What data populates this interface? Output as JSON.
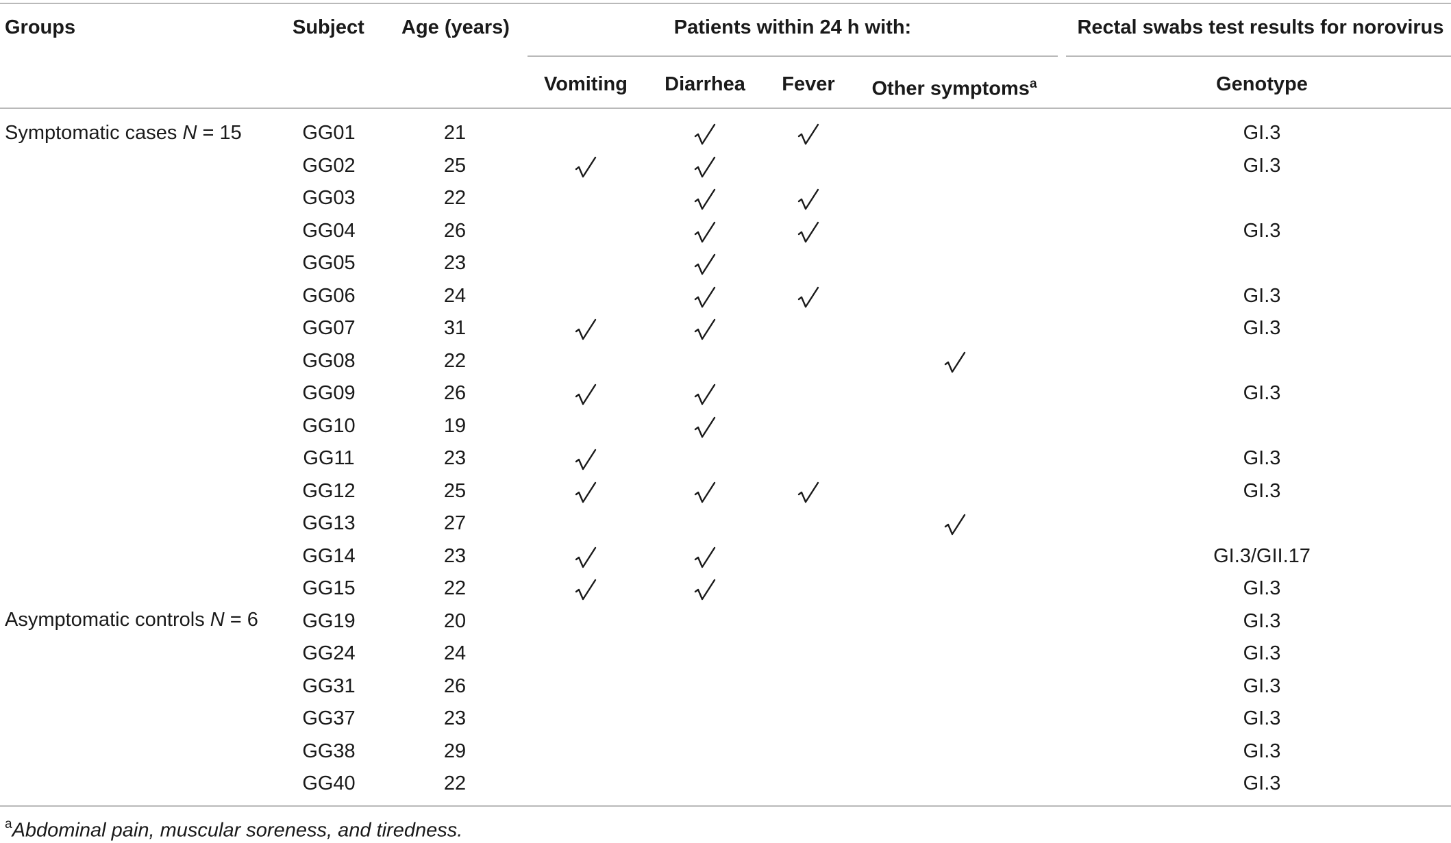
{
  "table": {
    "headers": {
      "groups": "Groups",
      "subject": "Subject",
      "age": "Age (years)",
      "patients_group": "Patients within 24 h with:",
      "rectal_group": "Rectal swabs test results for norovirus",
      "vomiting": "Vomiting",
      "diarrhea": "Diarrhea",
      "fever": "Fever",
      "other": "Other symptoms",
      "other_sup": "a",
      "genotype": "Genotype"
    },
    "groups": [
      {
        "prefix": "Symptomatic cases ",
        "var": "N",
        "suffix": " = 15"
      },
      {
        "prefix": "Asymptomatic controls ",
        "var": "N",
        "suffix": " = 6"
      }
    ],
    "check_symbol": "√",
    "rows": [
      {
        "subject": "GG01",
        "age": "21",
        "vomiting": false,
        "diarrhea": true,
        "fever": true,
        "other": false,
        "genotype": "GI.3"
      },
      {
        "subject": "GG02",
        "age": "25",
        "vomiting": true,
        "diarrhea": true,
        "fever": false,
        "other": false,
        "genotype": "GI.3"
      },
      {
        "subject": "GG03",
        "age": "22",
        "vomiting": false,
        "diarrhea": true,
        "fever": true,
        "other": false,
        "genotype": ""
      },
      {
        "subject": "GG04",
        "age": "26",
        "vomiting": false,
        "diarrhea": true,
        "fever": true,
        "other": false,
        "genotype": "GI.3"
      },
      {
        "subject": "GG05",
        "age": "23",
        "vomiting": false,
        "diarrhea": true,
        "fever": false,
        "other": false,
        "genotype": ""
      },
      {
        "subject": "GG06",
        "age": "24",
        "vomiting": false,
        "diarrhea": true,
        "fever": true,
        "other": false,
        "genotype": "GI.3"
      },
      {
        "subject": "GG07",
        "age": "31",
        "vomiting": true,
        "diarrhea": true,
        "fever": false,
        "other": false,
        "genotype": "GI.3"
      },
      {
        "subject": "GG08",
        "age": "22",
        "vomiting": false,
        "diarrhea": false,
        "fever": false,
        "other": true,
        "genotype": ""
      },
      {
        "subject": "GG09",
        "age": "26",
        "vomiting": true,
        "diarrhea": true,
        "fever": false,
        "other": false,
        "genotype": "GI.3"
      },
      {
        "subject": "GG10",
        "age": "19",
        "vomiting": false,
        "diarrhea": true,
        "fever": false,
        "other": false,
        "genotype": ""
      },
      {
        "subject": "GG11",
        "age": "23",
        "vomiting": true,
        "diarrhea": false,
        "fever": false,
        "other": false,
        "genotype": "GI.3"
      },
      {
        "subject": "GG12",
        "age": "25",
        "vomiting": true,
        "diarrhea": true,
        "fever": true,
        "other": false,
        "genotype": "GI.3"
      },
      {
        "subject": "GG13",
        "age": "27",
        "vomiting": false,
        "diarrhea": false,
        "fever": false,
        "other": true,
        "genotype": ""
      },
      {
        "subject": "GG14",
        "age": "23",
        "vomiting": true,
        "diarrhea": true,
        "fever": false,
        "other": false,
        "genotype": "GI.3/GII.17"
      },
      {
        "subject": "GG15",
        "age": "22",
        "vomiting": true,
        "diarrhea": true,
        "fever": false,
        "other": false,
        "genotype": "GI.3"
      },
      {
        "subject": "GG19",
        "age": "20",
        "vomiting": false,
        "diarrhea": false,
        "fever": false,
        "other": false,
        "genotype": "GI.3"
      },
      {
        "subject": "GG24",
        "age": "24",
        "vomiting": false,
        "diarrhea": false,
        "fever": false,
        "other": false,
        "genotype": "GI.3"
      },
      {
        "subject": "GG31",
        "age": "26",
        "vomiting": false,
        "diarrhea": false,
        "fever": false,
        "other": false,
        "genotype": "GI.3"
      },
      {
        "subject": "GG37",
        "age": "23",
        "vomiting": false,
        "diarrhea": false,
        "fever": false,
        "other": false,
        "genotype": "GI.3"
      },
      {
        "subject": "GG38",
        "age": "29",
        "vomiting": false,
        "diarrhea": false,
        "fever": false,
        "other": false,
        "genotype": "GI.3"
      },
      {
        "subject": "GG40",
        "age": "22",
        "vomiting": false,
        "diarrhea": false,
        "fever": false,
        "other": false,
        "genotype": "GI.3"
      }
    ]
  },
  "footnote": {
    "marker": "a",
    "text": "Abdominal pain, muscular soreness, and tiredness."
  }
}
